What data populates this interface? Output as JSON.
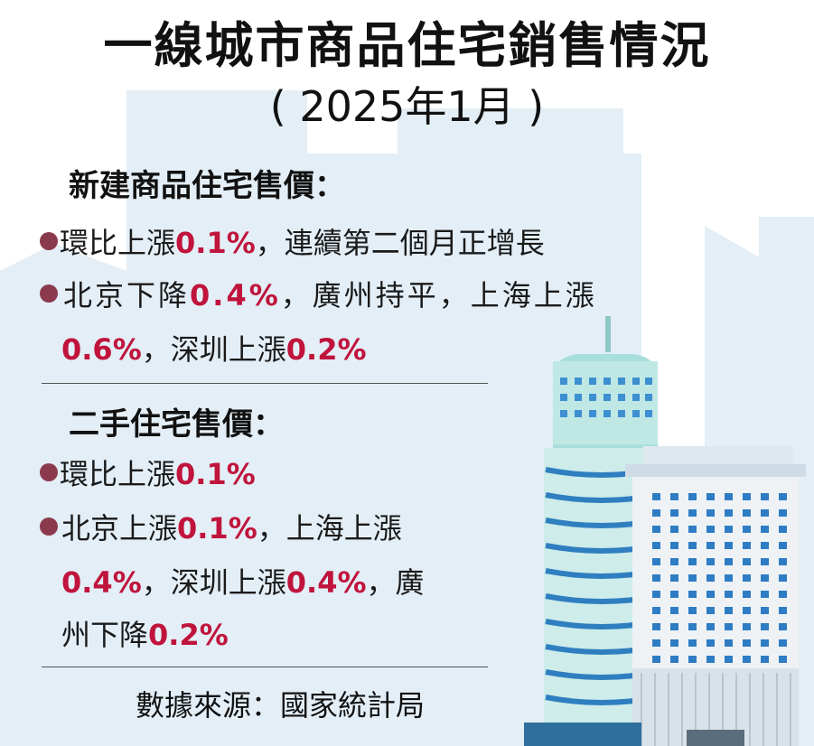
{
  "title": "一線城市商品住宅銷售情況",
  "subtitle": "( 2025年1月 )",
  "new_homes": {
    "heading": "新建商品住宅售價：",
    "item1": {
      "a": "環比上漲",
      "b": "0.1%",
      "c": "，連續第二個月正增長"
    },
    "item2_line1": {
      "a": "北京下降",
      "b": "0.4%",
      "c": "，廣州持平，上海上漲"
    },
    "item2_line2": {
      "a": "0.6%",
      "b": "，深圳上漲",
      "c": "0.2%"
    }
  },
  "second_hand": {
    "heading": "二手住宅售價：",
    "item1": {
      "a": "環比上漲",
      "b": "0.1%"
    },
    "item2_line1": {
      "a": "北京上漲",
      "b": "0.1%",
      "c": "，上海上漲"
    },
    "item2_line2": {
      "a": "0.4%",
      "b": "，深圳上漲",
      "c": "0.4%",
      "d": "，廣"
    },
    "item2_line3": {
      "a": "州下降",
      "b": "0.2%"
    }
  },
  "source": "數據來源：國家統計局",
  "colors": {
    "accent_red": "#c0143c",
    "bullet": "#8b3a4e",
    "background_skyline": "#dce9f3"
  }
}
